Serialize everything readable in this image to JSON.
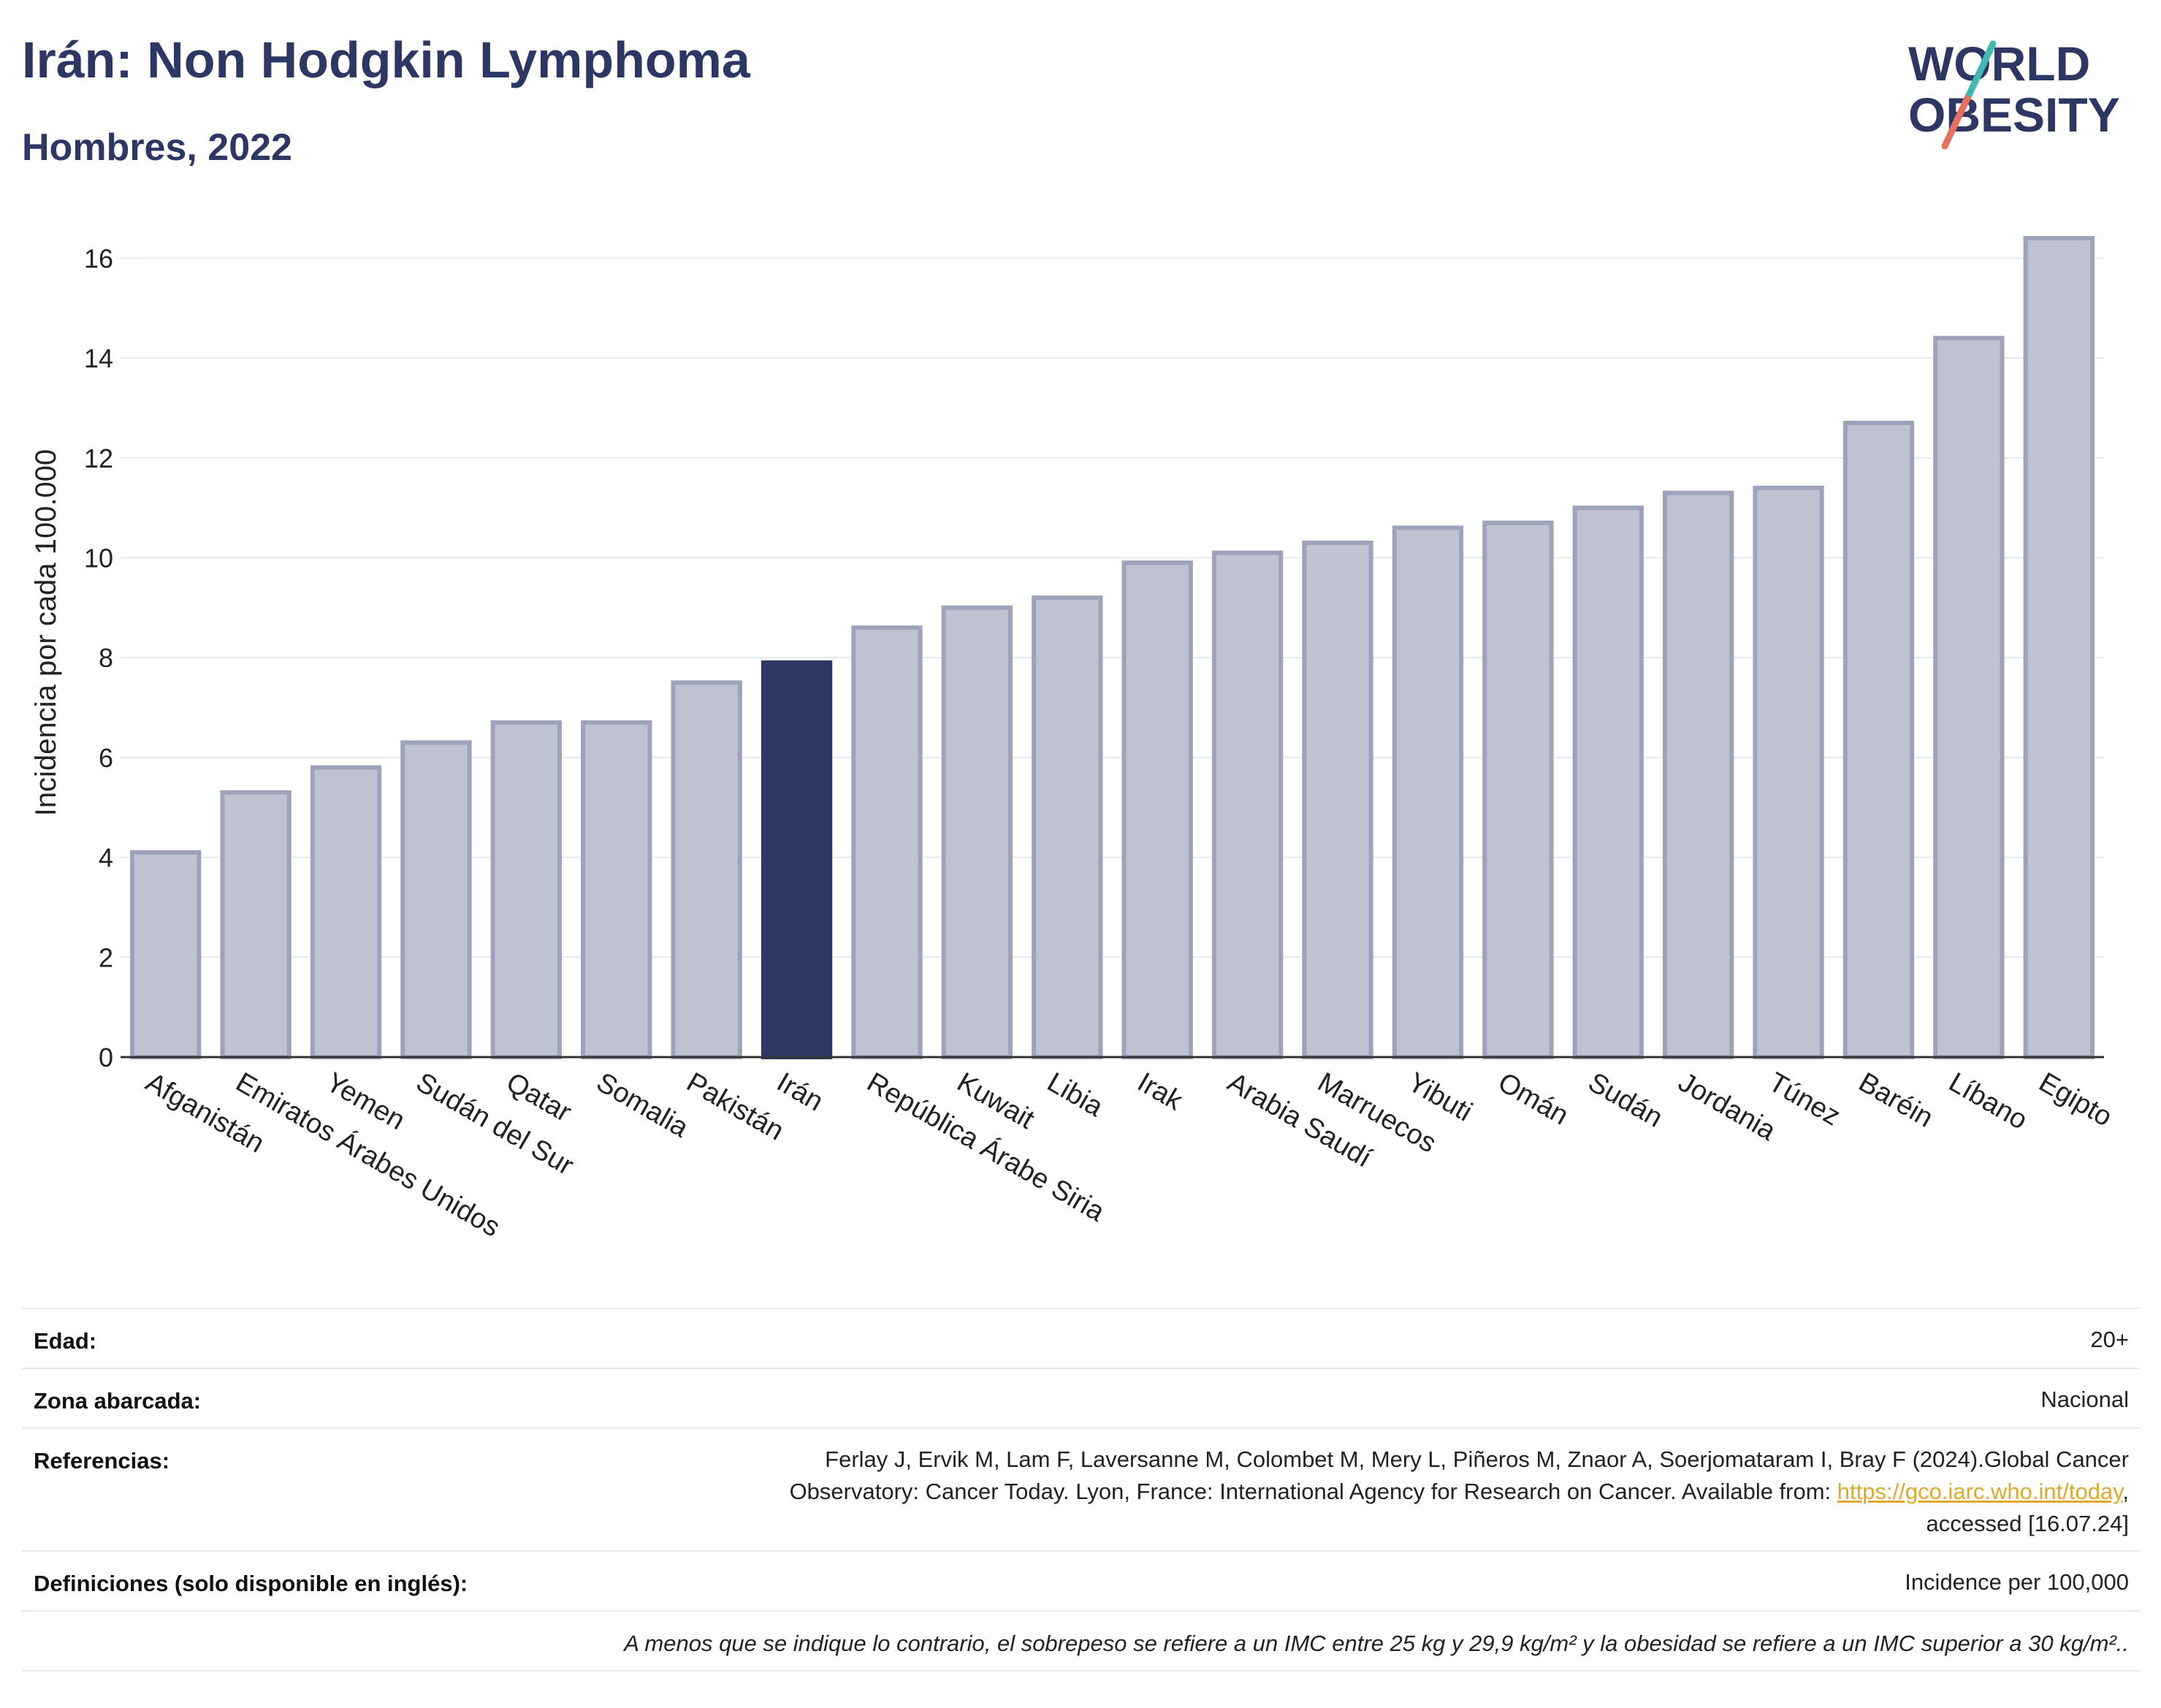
{
  "header": {
    "title": "Irán: Non Hodgkin Lymphoma",
    "subtitle": "Hombres, 2022"
  },
  "logo": {
    "line1": "WORLD",
    "line2": "OBESITY"
  },
  "chart_data": {
    "type": "bar",
    "ylabel": "Incidencia por cada 100.000",
    "xlabel": "",
    "ylim": [
      0,
      17
    ],
    "yticks": [
      0,
      2,
      4,
      6,
      8,
      10,
      12,
      14,
      16
    ],
    "grid": true,
    "highlight": "Irán",
    "colors": {
      "bar": "#bfc3d1",
      "bar_border": "#9da3b9",
      "highlight": "#2c3863",
      "grid": "#e6e9ef"
    },
    "categories": [
      "Afganistán",
      "Emiratos Árabes Unidos",
      "Yemen",
      "Sudán del Sur",
      "Qatar",
      "Somalia",
      "Pakistán",
      "Irán",
      "República Árabe Siria",
      "Kuwait",
      "Libia",
      "Irak",
      "Arabia Saudí",
      "Marruecos",
      "Yibuti",
      "Omán",
      "Sudán",
      "Jordania",
      "Túnez",
      "Baréin",
      "Líbano",
      "Egipto"
    ],
    "values": [
      4.1,
      5.3,
      5.8,
      6.3,
      6.7,
      6.7,
      7.5,
      7.9,
      8.6,
      9.0,
      9.2,
      9.9,
      10.1,
      10.3,
      10.6,
      10.7,
      11.0,
      11.3,
      11.4,
      12.7,
      14.4,
      16.4
    ]
  },
  "info": {
    "edad_label": "Edad:",
    "edad_value": "20+",
    "zona_label": "Zona abarcada:",
    "zona_value": "Nacional",
    "ref_label": "Referencias:",
    "ref_line1": "Ferlay J, Ervik M, Lam F, Laversanne M, Colombet M, Mery L, Piñeros M, Znaor A, Soerjomataram I, Bray F (2024).Global Cancer",
    "ref_line2": "Observatory: Cancer Today. Lyon, France: International Agency for Research on Cancer. Available from:",
    "ref_link": "https://gco.iarc.who.int/today",
    "ref_line3": "accessed [16.07.24]",
    "def_label": "Definiciones (solo disponible en inglés):",
    "def_value": "Incidence per 100,000",
    "note": "A menos que se indique lo contrario, el sobrepeso se refiere a un IMC entre 25 kg y 29,9 kg/m² y la obesidad se refiere a un IMC superior a 30 kg/m²."
  }
}
